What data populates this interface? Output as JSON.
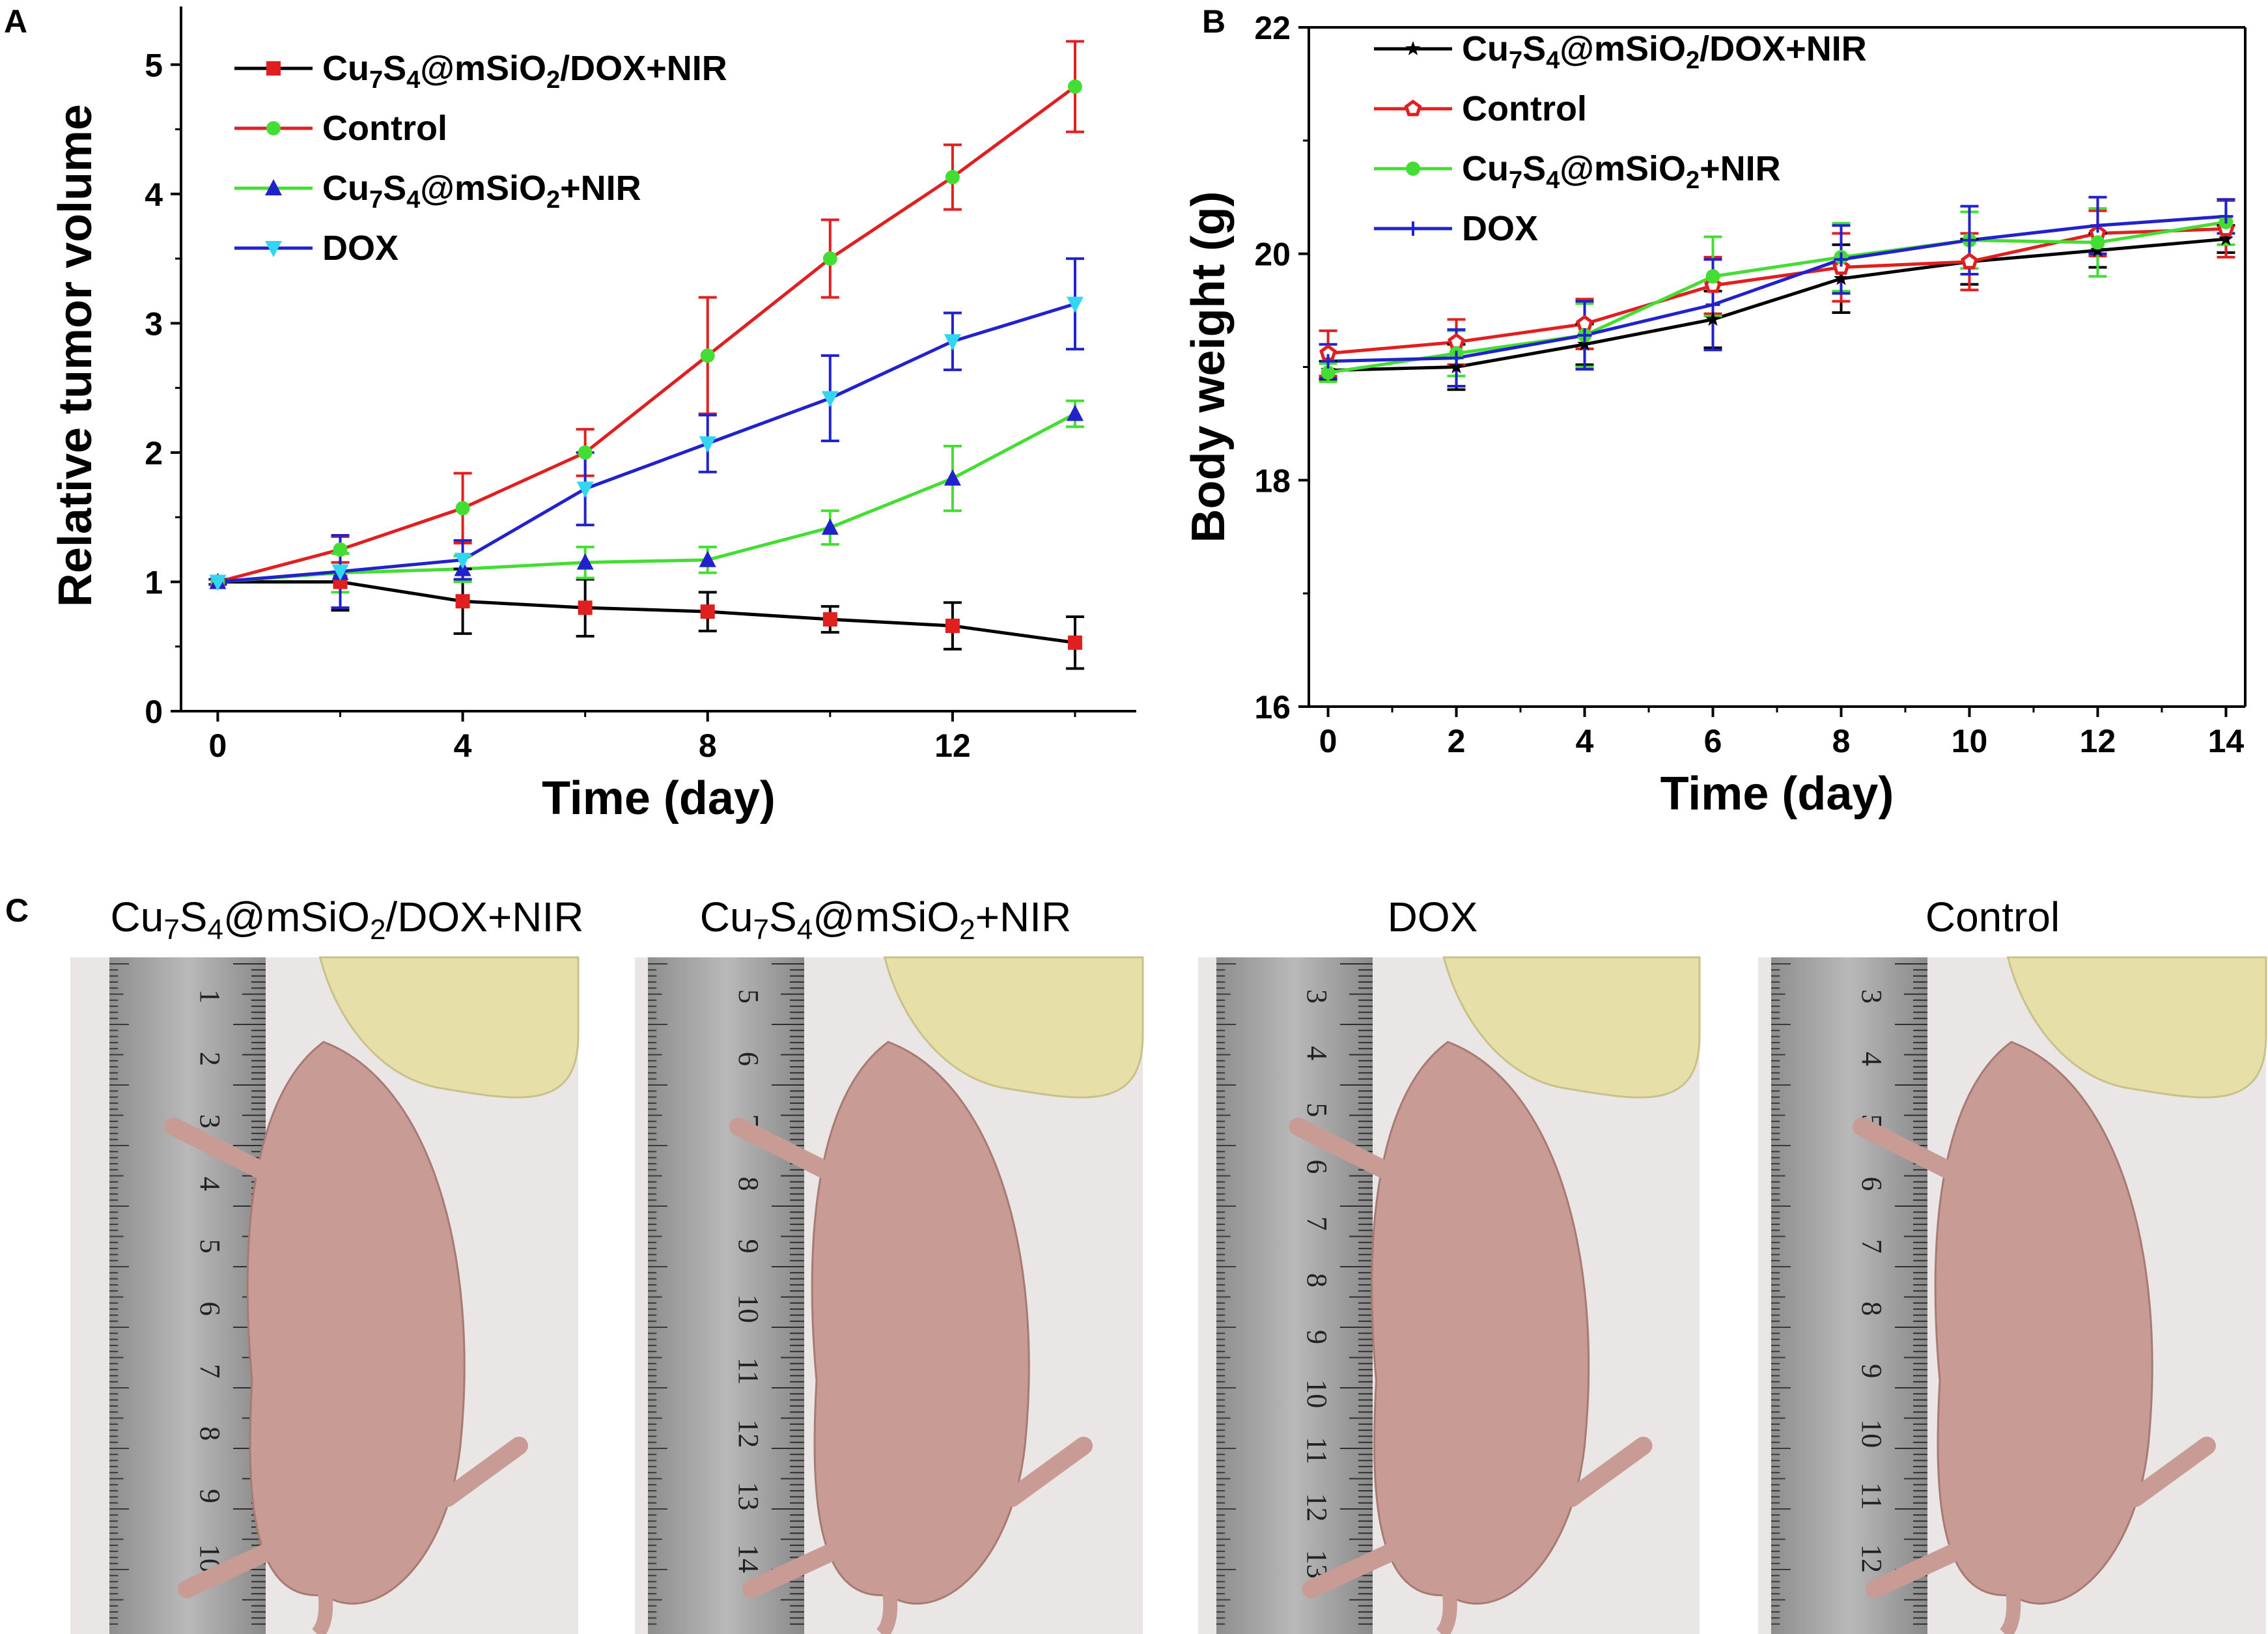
{
  "panels": {
    "a": "A",
    "b": "B",
    "c": "C"
  },
  "chart_data": [
    {
      "type": "line",
      "id": "A",
      "xlabel": "Time (day)",
      "ylabel": "Relative tumor volume",
      "xlim": [
        -0.6,
        15
      ],
      "ylim": [
        0,
        5.5
      ],
      "xticks": [
        0,
        4,
        8,
        12
      ],
      "yticks": [
        0,
        1,
        2,
        3,
        4,
        5
      ],
      "legend_position": "top-left",
      "series": [
        {
          "name": "Cu7S4@mSiO2/DOX+NIR",
          "line_color": "#000000",
          "marker_color": "#e02020",
          "marker": "square",
          "x": [
            0,
            2,
            4,
            6,
            8,
            10,
            12,
            14
          ],
          "values": [
            1.0,
            1.0,
            0.85,
            0.8,
            0.77,
            0.71,
            0.66,
            0.53
          ],
          "errors": [
            0.02,
            0.22,
            0.25,
            0.22,
            0.15,
            0.1,
            0.18,
            0.2
          ]
        },
        {
          "name": "Control",
          "line_color": "#e02020",
          "marker_color": "#44dd33",
          "marker": "circle",
          "x": [
            0,
            2,
            4,
            6,
            8,
            10,
            12,
            14
          ],
          "values": [
            1.0,
            1.25,
            1.57,
            2.0,
            2.75,
            3.5,
            4.13,
            4.83
          ],
          "errors": [
            0.02,
            0.1,
            0.27,
            0.18,
            0.45,
            0.3,
            0.25,
            0.35
          ]
        },
        {
          "name": "Cu7S4@mSiO2+NIR",
          "line_color": "#44dd33",
          "marker_color": "#2222cc",
          "marker": "triangle-up",
          "x": [
            0,
            2,
            4,
            6,
            8,
            10,
            12,
            14
          ],
          "values": [
            1.0,
            1.07,
            1.1,
            1.15,
            1.17,
            1.42,
            1.8,
            2.3
          ],
          "errors": [
            0.02,
            0.15,
            0.1,
            0.12,
            0.1,
            0.13,
            0.25,
            0.1
          ]
        },
        {
          "name": "DOX",
          "line_color": "#2222cc",
          "marker_color": "#33d6f0",
          "marker": "triangle-down",
          "x": [
            0,
            2,
            4,
            6,
            8,
            10,
            12,
            14
          ],
          "values": [
            1.0,
            1.08,
            1.17,
            1.72,
            2.07,
            2.42,
            2.86,
            3.15
          ],
          "errors": [
            0.02,
            0.28,
            0.15,
            0.28,
            0.22,
            0.33,
            0.22,
            0.35
          ]
        }
      ]
    },
    {
      "type": "line",
      "id": "B",
      "xlabel": "Time (day)",
      "ylabel": "Body weight  (g)",
      "xlim": [
        -0.3,
        14.3
      ],
      "ylim": [
        16,
        22
      ],
      "xticks": [
        0,
        2,
        4,
        6,
        8,
        10,
        12,
        14
      ],
      "yticks": [
        16,
        18,
        20,
        22
      ],
      "legend_position": "top-left",
      "series": [
        {
          "name": "Cu7S4@mSiO2/DOX+NIR",
          "line_color": "#000000",
          "marker_color": "#000000",
          "marker": "star",
          "x": [
            0,
            2,
            4,
            6,
            8,
            10,
            12,
            14
          ],
          "values": [
            18.97,
            19.0,
            19.2,
            19.42,
            19.78,
            19.93,
            20.03,
            20.13
          ],
          "errors": [
            0.08,
            0.2,
            0.18,
            0.25,
            0.3,
            0.2,
            0.15,
            0.12
          ]
        },
        {
          "name": "Control",
          "line_color": "#e02020",
          "marker_color": "#e02020",
          "marker": "pentagon",
          "x": [
            0,
            2,
            4,
            6,
            8,
            10,
            12,
            14
          ],
          "values": [
            19.12,
            19.22,
            19.38,
            19.72,
            19.88,
            19.93,
            20.18,
            20.22
          ],
          "errors": [
            0.2,
            0.2,
            0.22,
            0.25,
            0.3,
            0.25,
            0.2,
            0.25
          ]
        },
        {
          "name": "Cu7S4@mSiO2+NIR",
          "line_color": "#44dd33",
          "marker_color": "#44dd33",
          "marker": "circle",
          "x": [
            0,
            2,
            4,
            6,
            8,
            10,
            12,
            14
          ],
          "values": [
            18.95,
            19.12,
            19.28,
            19.8,
            19.97,
            20.12,
            20.1,
            20.28
          ],
          "errors": [
            0.08,
            0.2,
            0.28,
            0.35,
            0.3,
            0.25,
            0.3,
            0.2
          ]
        },
        {
          "name": "DOX",
          "line_color": "#2222cc",
          "marker_color": "#2222cc",
          "marker": "plus",
          "x": [
            0,
            2,
            4,
            6,
            8,
            10,
            12,
            14
          ],
          "values": [
            19.05,
            19.08,
            19.28,
            19.55,
            19.95,
            20.12,
            20.25,
            20.33
          ],
          "errors": [
            0.15,
            0.25,
            0.3,
            0.4,
            0.3,
            0.3,
            0.25,
            0.15
          ]
        }
      ]
    }
  ],
  "photos": {
    "labels": [
      {
        "prefix": "Cu",
        "s1": "7",
        "mid": "S",
        "s2": "4",
        "mid2": "@mSiO",
        "s3": "2",
        "suffix": "/DOX+NIR"
      },
      {
        "prefix": "Cu",
        "s1": "7",
        "mid": "S",
        "s2": "4",
        "mid2": "@mSiO",
        "s3": "2",
        "suffix": "+NIR"
      },
      {
        "text": "DOX"
      },
      {
        "text": "Control"
      }
    ],
    "ruler_numbers": [
      [
        "1",
        "2",
        "3",
        "4",
        "5",
        "6",
        "7",
        "8",
        "9",
        "10"
      ],
      [
        "5",
        "6",
        "7",
        "8",
        "9",
        "10",
        "11",
        "12",
        "13",
        "14"
      ],
      [
        "3",
        "4",
        "5",
        "6",
        "7",
        "8",
        "9",
        "10",
        "11",
        "12",
        "13"
      ],
      [
        "3",
        "4",
        "5",
        "6",
        "7",
        "8",
        "9",
        "10",
        "11",
        "12"
      ]
    ],
    "background_color": "#e9e6e5",
    "glove_color": "#e6e0a8",
    "mouse_color": "#c99b95"
  }
}
